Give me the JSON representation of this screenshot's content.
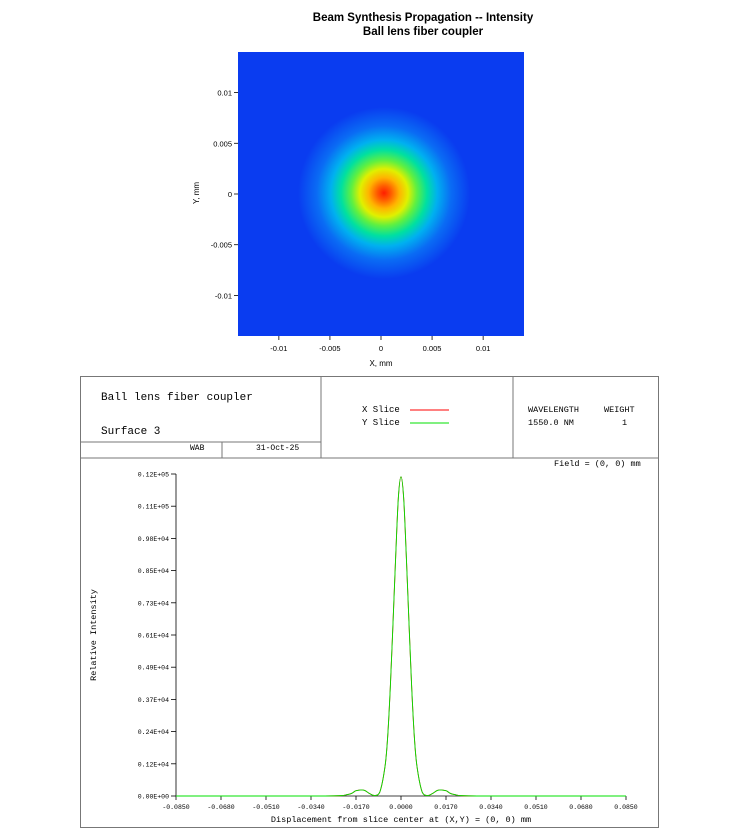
{
  "heatmap": {
    "title_line1": "Beam Synthesis Propagation -- Intensity",
    "title_line2": "Ball lens fiber coupler",
    "xlabel": "X, mm",
    "ylabel": "Y, mm",
    "xticks": [
      "-0.01",
      "-0.005",
      "0",
      "0.005",
      "0.01"
    ],
    "yticks": [
      "0.01",
      "0.005",
      "0",
      "-0.005",
      "-0.01"
    ],
    "colors": {
      "low": "#0a3cf0",
      "high": "#ff1e00"
    }
  },
  "info_block": {
    "title": "Ball lens fiber coupler",
    "surface": "Surface 3",
    "initials": "WAB",
    "date": "31-Oct-25",
    "legend_x": "X Slice",
    "legend_y": "Y Slice",
    "wavelength_header": "WAVELENGTH",
    "weight_header": "WEIGHT",
    "wavelength_value": "1550.0 NM",
    "weight_value": "1",
    "field_label": "Field = (0, 0) mm"
  },
  "chart_data": [
    {
      "type": "heatmap",
      "title": "Beam Synthesis Propagation -- Intensity\nBall lens fiber coupler",
      "xlabel": "X, mm",
      "ylabel": "Y, mm",
      "xlim": [
        -0.014,
        0.014
      ],
      "ylim": [
        -0.014,
        0.014
      ],
      "peak_center": [
        0,
        0
      ],
      "colormap": "jet"
    },
    {
      "type": "line",
      "xlabel": "Displacement from slice center at (X,Y) = (0, 0) mm",
      "ylabel": "Relative Intensity",
      "xticks": [
        "-0.0850",
        "-0.0680",
        "-0.0510",
        "-0.0340",
        "-0.0170",
        "0.0000",
        "0.0170",
        "0.0340",
        "0.0510",
        "0.0680",
        "0.0850"
      ],
      "yticks": [
        "0.00E+00",
        "0.12E+04",
        "0.24E+04",
        "0.37E+04",
        "0.49E+04",
        "0.61E+04",
        "0.73E+04",
        "0.85E+04",
        "0.98E+04",
        "0.11E+05",
        "0.12E+05"
      ],
      "xlim": [
        -0.085,
        0.085
      ],
      "ylim": [
        0,
        12200
      ],
      "series": [
        {
          "name": "X Slice",
          "color": "#ff0000",
          "x": [
            -0.085,
            -0.03,
            -0.02,
            -0.017,
            -0.014,
            -0.012,
            -0.01,
            -0.008,
            -0.006,
            -0.005,
            -0.004,
            -0.003,
            -0.002,
            -0.001,
            0.0,
            0.001,
            0.002,
            0.003,
            0.004,
            0.005,
            0.006,
            0.008,
            0.01,
            0.012,
            0.014,
            0.017,
            0.02,
            0.03,
            0.085
          ],
          "y": [
            0,
            0,
            60,
            200,
            220,
            100,
            20,
            150,
            1150,
            2300,
            4200,
            6600,
            9100,
            11300,
            12100,
            11300,
            9100,
            6600,
            4200,
            2300,
            1150,
            150,
            20,
            100,
            220,
            200,
            60,
            0,
            0
          ]
        },
        {
          "name": "Y Slice",
          "color": "#00e000",
          "x": [
            -0.085,
            -0.03,
            -0.02,
            -0.017,
            -0.014,
            -0.012,
            -0.01,
            -0.008,
            -0.006,
            -0.005,
            -0.004,
            -0.003,
            -0.002,
            -0.001,
            0.0,
            0.001,
            0.002,
            0.003,
            0.004,
            0.005,
            0.006,
            0.008,
            0.01,
            0.012,
            0.014,
            0.017,
            0.02,
            0.03,
            0.085
          ],
          "y": [
            0,
            0,
            60,
            200,
            220,
            100,
            20,
            150,
            1150,
            2300,
            4200,
            6600,
            9100,
            11300,
            12100,
            11300,
            9100,
            6600,
            4200,
            2300,
            1150,
            150,
            20,
            100,
            220,
            200,
            60,
            0,
            0
          ]
        }
      ]
    }
  ]
}
